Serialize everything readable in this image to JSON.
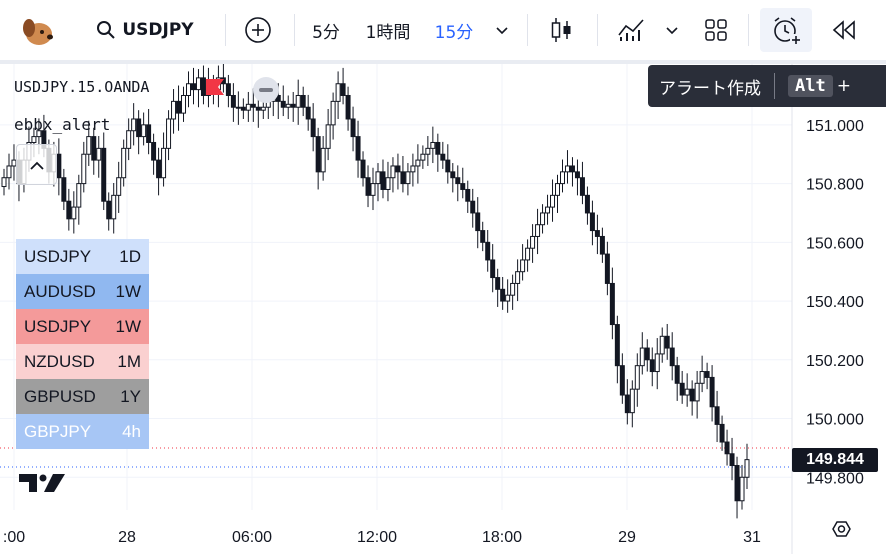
{
  "toolbar": {
    "symbol": "USDJPY",
    "intervals": [
      "5分",
      "1時間",
      "15分"
    ],
    "active_interval": "15分",
    "accent_color": "#2962ff"
  },
  "tooltip": {
    "label": "アラート作成",
    "key": "Alt",
    "plus": "+"
  },
  "legend": {
    "symbol_line": "USDJPY.15.OANDA",
    "indicator": "ebbx_alert"
  },
  "watchlist": [
    {
      "symbol": "USDJPY",
      "tf": "1D",
      "bg": "#cfe0fb",
      "fg": "#131722"
    },
    {
      "symbol": "AUDUSD",
      "tf": "1W",
      "bg": "#90b8f0",
      "fg": "#131722"
    },
    {
      "symbol": "USDJPY",
      "tf": "1W",
      "bg": "#f49a9a",
      "fg": "#131722"
    },
    {
      "symbol": "NZDUSD",
      "tf": "1M",
      "bg": "#fad0d0",
      "fg": "#131722"
    },
    {
      "symbol": "GBPUSD",
      "tf": "1Y",
      "bg": "#9e9e9e",
      "fg": "#131722"
    },
    {
      "symbol": "GBPJPY",
      "tf": "4h",
      "bg": "#a7c6f5",
      "fg": "#ffffff"
    }
  ],
  "price_badge": "149.844",
  "chart_data": {
    "type": "candlestick",
    "symbol": "USDJPY",
    "interval": "15",
    "source": "OANDA",
    "y_ticks": [
      "151.000",
      "150.800",
      "150.600",
      "150.400",
      "150.200",
      "150.000",
      "149.800"
    ],
    "y_tick_values": [
      151.0,
      150.8,
      150.6,
      150.4,
      150.2,
      150.0,
      149.8
    ],
    "x_ticks": [
      ":00",
      "28",
      "06:00",
      "12:00",
      "18:00",
      "29",
      "31"
    ],
    "ylim": [
      149.6,
      151.18
    ],
    "last_price": 149.844,
    "grid": true,
    "candles_close": [
      150.82,
      150.86,
      150.88,
      150.8,
      150.88,
      150.94,
      150.96,
      150.98,
      150.92,
      150.84,
      150.9,
      150.82,
      150.74,
      150.68,
      150.72,
      150.8,
      150.9,
      150.96,
      150.88,
      150.92,
      150.74,
      150.68,
      150.76,
      150.82,
      150.92,
      150.98,
      151.02,
      150.96,
      151.0,
      150.94,
      150.88,
      150.82,
      150.92,
      151.02,
      151.08,
      151.04,
      151.1,
      151.14,
      151.12,
      151.16,
      151.1,
      151.14,
      151.12,
      151.16,
      151.14,
      151.1,
      151.06,
      151.06,
      151.05,
      151.07,
      151.06,
      151.05,
      151.06,
      151.08,
      151.1,
      151.08,
      151.06,
      151.07,
      151.06,
      151.1,
      151.06,
      151.02,
      150.96,
      150.84,
      150.92,
      151.0,
      151.08,
      151.14,
      151.1,
      151.02,
      150.96,
      150.88,
      150.82,
      150.76,
      150.8,
      150.84,
      150.78,
      150.82,
      150.86,
      150.84,
      150.8,
      150.84,
      150.86,
      150.88,
      150.9,
      150.92,
      150.94,
      150.9,
      150.88,
      150.84,
      150.82,
      150.8,
      150.78,
      150.74,
      150.7,
      150.64,
      150.6,
      150.54,
      150.48,
      150.44,
      150.4,
      150.42,
      150.46,
      150.5,
      150.54,
      150.58,
      150.62,
      150.66,
      150.7,
      150.72,
      150.76,
      150.8,
      150.84,
      150.86,
      150.84,
      150.82,
      150.76,
      150.7,
      150.64,
      150.62,
      150.56,
      150.46,
      150.32,
      150.18,
      150.08,
      150.02,
      150.1,
      150.18,
      150.24,
      150.2,
      150.16,
      150.22,
      150.28,
      150.24,
      150.18,
      150.12,
      150.08,
      150.1,
      150.06,
      150.12,
      150.16,
      150.14,
      150.04,
      149.98,
      149.92,
      149.88,
      149.84,
      149.72,
      149.8,
      149.86
    ]
  }
}
